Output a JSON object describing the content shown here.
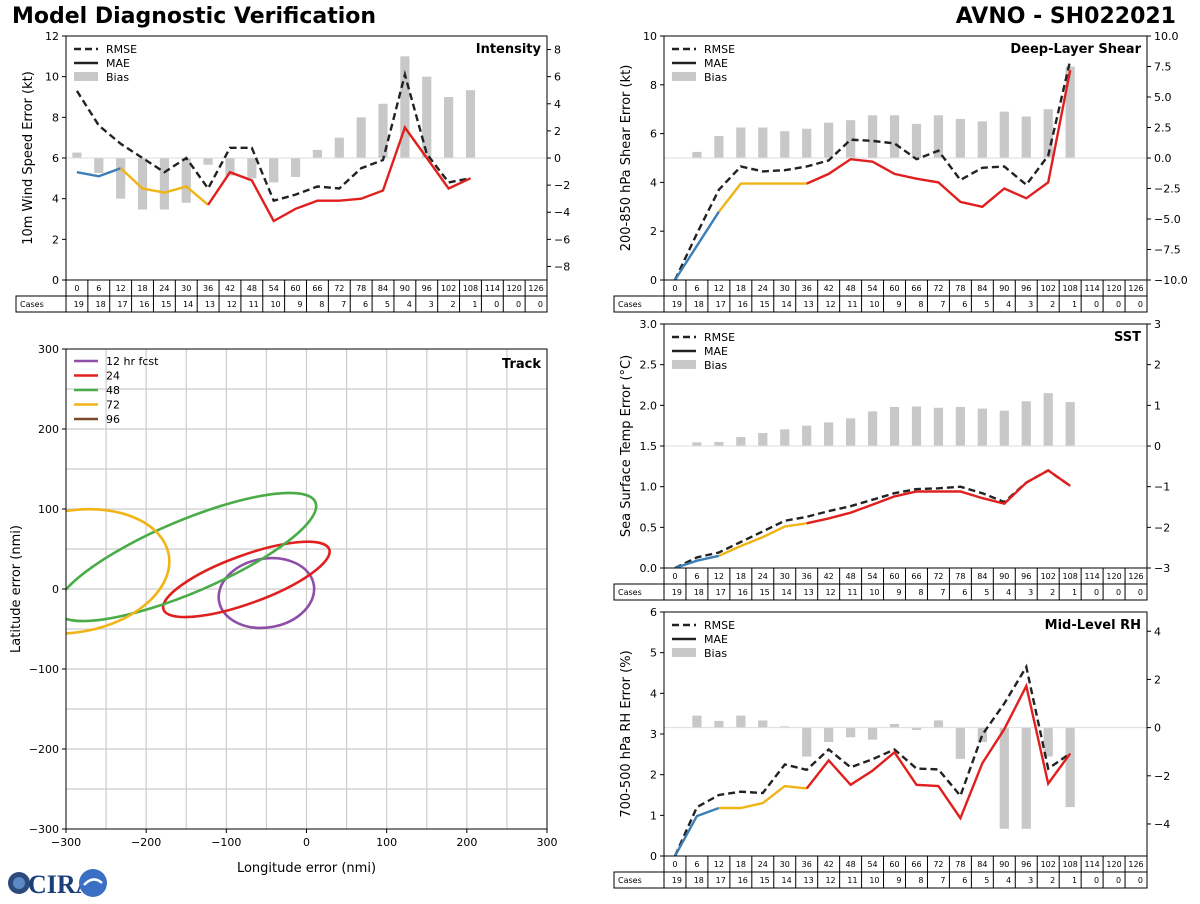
{
  "header": {
    "title": "Model Diagnostic Verification",
    "id": "AVNO - SH022021"
  },
  "logo": {
    "text": "CIRA"
  },
  "legend_labels": {
    "rmse": "RMSE",
    "mae": "MAE",
    "bias": "Bias"
  },
  "colors": {
    "rmse": "#222222",
    "mae_blue": "#3a7fb8",
    "mae_yellow": "#f0b416",
    "mae_red": "#e0201e",
    "bias": "#c8c8c8",
    "grid": "#cccccc",
    "track_12": "#8e4ea8",
    "track_24": "#e0201e",
    "track_48": "#4aac48",
    "track_72": "#f0b416",
    "track_96": "#7b4a2a"
  },
  "hours": [
    0,
    6,
    12,
    18,
    24,
    30,
    36,
    42,
    48,
    54,
    60,
    66,
    72,
    78,
    84,
    90,
    96,
    102,
    108,
    114,
    120,
    126
  ],
  "cases": [
    19,
    18,
    17,
    16,
    15,
    14,
    13,
    12,
    11,
    10,
    9,
    8,
    7,
    6,
    5,
    4,
    3,
    2,
    1,
    0,
    0,
    0
  ],
  "cases_label": "Cases",
  "chart_data": [
    {
      "id": "intensity",
      "type": "line",
      "title": "Intensity",
      "ylabel": "10m Wind Speed Error (kt)",
      "ylim": [
        0,
        12
      ],
      "yticks": [
        0,
        2,
        4,
        6,
        8,
        10,
        12
      ],
      "y2lim": [
        -9,
        9
      ],
      "y2ticks": [
        -8,
        -6,
        -4,
        -2,
        0,
        2,
        4,
        6,
        8
      ],
      "y2ticklabels": [
        "−8",
        "−6",
        "−4",
        "−2",
        "0",
        "2",
        "4",
        "6",
        "8"
      ],
      "x": [
        0,
        6,
        12,
        18,
        24,
        30,
        36,
        42,
        48,
        54,
        60,
        66,
        72,
        78,
        84,
        90,
        96,
        102,
        108
      ],
      "rmse": [
        9.3,
        7.6,
        6.7,
        6.0,
        5.3,
        6.0,
        4.5,
        6.5,
        6.5,
        3.9,
        4.2,
        4.6,
        4.5,
        5.5,
        5.9,
        10.1,
        6.2,
        4.8,
        5.0
      ],
      "mae": [
        5.3,
        5.1,
        5.5,
        4.5,
        4.3,
        4.6,
        3.7,
        5.3,
        4.9,
        2.9,
        3.5,
        3.9,
        3.9,
        4.0,
        4.4,
        7.5,
        6.0,
        4.5,
        5.0
      ],
      "bias": [
        0.4,
        -1.1,
        -3.0,
        -3.8,
        -3.8,
        -3.3,
        -0.5,
        -1.3,
        -1.5,
        -1.8,
        -1.4,
        0.6,
        1.5,
        3.0,
        4.0,
        7.5,
        6.0,
        4.5,
        5.0
      ]
    },
    {
      "id": "shear",
      "type": "line",
      "title": "Deep-Layer Shear",
      "ylabel": "200-850 hPa Shear Error (kt)",
      "ylim": [
        0,
        10
      ],
      "yticks": [
        0,
        2,
        4,
        6,
        8,
        10
      ],
      "y2lim": [
        -10,
        10
      ],
      "y2ticks": [
        -10,
        -7.5,
        -5,
        -2.5,
        0,
        2.5,
        5,
        7.5,
        10
      ],
      "y2ticklabels": [
        "−10.0",
        "−7.5",
        "−5.0",
        "−2.5",
        "0.0",
        "2.5",
        "5.0",
        "7.5",
        "10.0"
      ],
      "x": [
        0,
        6,
        12,
        18,
        24,
        30,
        36,
        42,
        48,
        54,
        60,
        66,
        72,
        78,
        84,
        90,
        96,
        102,
        108
      ],
      "rmse": [
        0.0,
        1.9,
        3.7,
        4.65,
        4.45,
        4.5,
        4.65,
        4.9,
        5.75,
        5.7,
        5.6,
        4.95,
        5.3,
        4.1,
        4.6,
        4.65,
        3.9,
        5.1,
        9.0
      ],
      "mae": [
        0.0,
        1.4,
        2.8,
        3.95,
        3.95,
        3.95,
        3.95,
        4.35,
        4.95,
        4.85,
        4.35,
        4.15,
        4.0,
        3.2,
        3.0,
        3.75,
        3.35,
        4.0,
        8.6
      ],
      "bias": [
        0.0,
        0.5,
        1.8,
        2.5,
        2.5,
        2.2,
        2.4,
        2.9,
        3.1,
        3.5,
        3.5,
        2.8,
        3.5,
        3.2,
        3.0,
        3.8,
        3.4,
        4.0,
        7.5
      ]
    },
    {
      "id": "sst",
      "type": "line",
      "title": "SST",
      "ylabel": "Sea Surface Temp Error (°C)",
      "ylim": [
        0,
        3
      ],
      "yticks": [
        0,
        0.5,
        1.0,
        1.5,
        2.0,
        2.5,
        3.0
      ],
      "yticklabels": [
        "0.0",
        "0.5",
        "1.0",
        "1.5",
        "2.0",
        "2.5",
        "3.0"
      ],
      "y2lim": [
        -3,
        3
      ],
      "y2ticks": [
        -3,
        -2,
        -1,
        0,
        1,
        2,
        3
      ],
      "y2ticklabels": [
        "−3",
        "−2",
        "−1",
        "0",
        "1",
        "2",
        "3"
      ],
      "x": [
        0,
        6,
        12,
        18,
        24,
        30,
        36,
        42,
        48,
        54,
        60,
        66,
        72,
        78,
        84,
        90,
        96,
        102,
        108
      ],
      "rmse": [
        0.0,
        0.13,
        0.19,
        0.32,
        0.45,
        0.58,
        0.63,
        0.7,
        0.76,
        0.84,
        0.92,
        0.97,
        0.98,
        1.0,
        0.92,
        0.81,
        1.05,
        1.2,
        1.01
      ],
      "mae": [
        0.0,
        0.09,
        0.15,
        0.27,
        0.38,
        0.51,
        0.55,
        0.61,
        0.68,
        0.78,
        0.88,
        0.94,
        0.94,
        0.94,
        0.86,
        0.79,
        1.05,
        1.2,
        1.01
      ],
      "bias": [
        0.0,
        0.09,
        0.1,
        0.22,
        0.32,
        0.41,
        0.5,
        0.58,
        0.68,
        0.85,
        0.96,
        0.97,
        0.94,
        0.96,
        0.92,
        0.87,
        1.1,
        1.3,
        1.08
      ]
    },
    {
      "id": "rh",
      "type": "line",
      "title": "Mid-Level RH",
      "ylabel": "700-500 hPa RH Error (%)",
      "ylim": [
        0,
        6
      ],
      "yticks": [
        0,
        1,
        2,
        3,
        4,
        5,
        6
      ],
      "y2lim": [
        -5.33,
        4.8
      ],
      "y2ticks": [
        -4,
        -2,
        0,
        2,
        4
      ],
      "y2ticklabels": [
        "−4",
        "−2",
        "0",
        "2",
        "4"
      ],
      "x": [
        0,
        6,
        12,
        18,
        24,
        30,
        36,
        42,
        48,
        54,
        60,
        66,
        72,
        78,
        84,
        90,
        96,
        102,
        108
      ],
      "rmse": [
        0.0,
        1.2,
        1.5,
        1.58,
        1.55,
        2.25,
        2.12,
        2.62,
        2.18,
        2.38,
        2.62,
        2.15,
        2.13,
        1.48,
        2.98,
        3.75,
        4.65,
        2.15,
        2.52
      ],
      "mae": [
        0.0,
        0.98,
        1.18,
        1.18,
        1.3,
        1.72,
        1.66,
        2.35,
        1.75,
        2.1,
        2.55,
        1.75,
        1.72,
        0.93,
        2.28,
        3.12,
        4.18,
        1.78,
        2.52
      ],
      "bias": [
        0.0,
        0.5,
        0.28,
        0.5,
        0.3,
        0.05,
        -1.2,
        -0.6,
        -0.4,
        -0.5,
        0.15,
        -0.1,
        0.3,
        -1.3,
        -0.6,
        -4.2,
        -4.2,
        -1.2,
        -3.3
      ]
    },
    {
      "id": "track",
      "type": "scatter",
      "title": "Track",
      "xlabel": "Longitude error (nmi)",
      "ylabel": "Latitude error (nmi)",
      "xlim": [
        -300,
        300
      ],
      "ylim": [
        -300,
        300
      ],
      "xticks": [
        -300,
        -200,
        -100,
        0,
        100,
        200,
        300
      ],
      "yticks": [
        -300,
        -200,
        -100,
        0,
        100,
        200,
        300
      ],
      "xticklabels": [
        "−300",
        "−200",
        "−100",
        "0",
        "100",
        "200",
        "300"
      ],
      "yticklabels": [
        "−300",
        "−200",
        "−100",
        "0",
        "100",
        "200",
        "300"
      ],
      "grid_step": 50,
      "legend": [
        "12 hr fcst",
        "24",
        "48",
        "72",
        "96"
      ],
      "ellipses": [
        {
          "name": "12 hr fcst",
          "cx": -50,
          "cy": -5,
          "rx": 60,
          "ry": 43,
          "angle": -10
        },
        {
          "name": "24",
          "cx": -75,
          "cy": 12,
          "rx": 110,
          "ry": 30,
          "angle": -20
        },
        {
          "name": "48",
          "cx": -150,
          "cy": 40,
          "rx": 175,
          "ry": 45,
          "angle": -23
        },
        {
          "name": "72",
          "cx": -290,
          "cy": 22,
          "rx": 120,
          "ry": 76,
          "angle": -10
        }
      ]
    }
  ]
}
